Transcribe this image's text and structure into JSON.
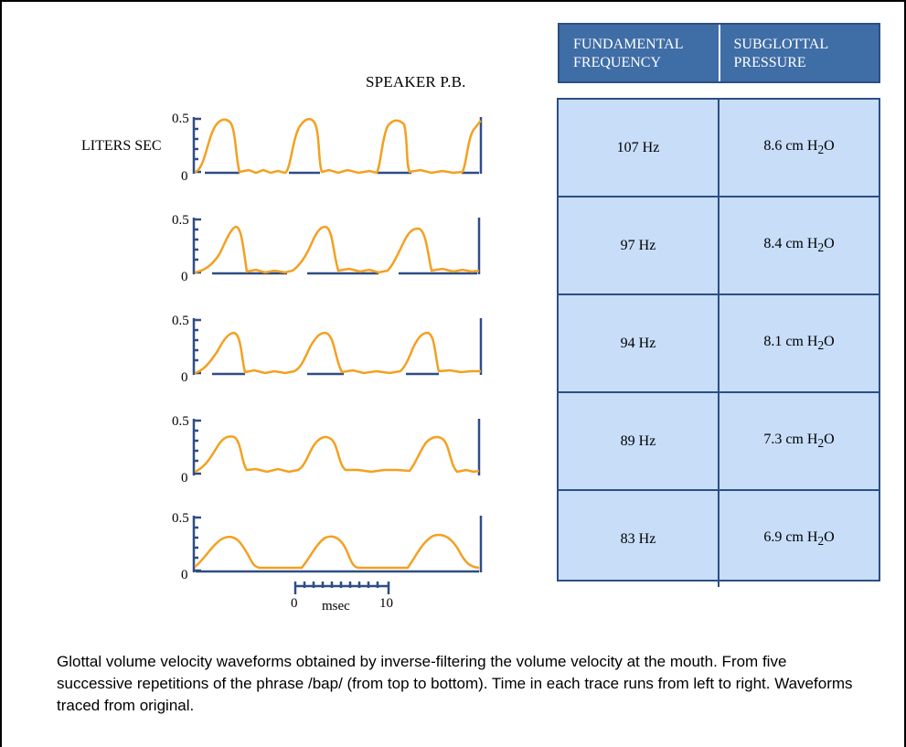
{
  "figure": {
    "speaker_label": "SPEAKER P.B.",
    "y_units_label": "LITERS SEC",
    "y_tick_top": "0.5",
    "y_tick_bottom": "0",
    "time_scale": {
      "start": "0",
      "end": "10",
      "unit": "msec"
    }
  },
  "table": {
    "headers": [
      "FUNDAMENTAL\nFREQUENCY",
      "SUBGLOTTAL\nPRESSURE"
    ],
    "rows": [
      {
        "frequency": "107 Hz",
        "pressure_value": "8.6 cm H",
        "pressure_sub": "2",
        "pressure_tail": "O"
      },
      {
        "frequency": "97 Hz",
        "pressure_value": "8.4 cm H",
        "pressure_sub": "2",
        "pressure_tail": "O"
      },
      {
        "frequency": "94 Hz",
        "pressure_value": "8.1 cm H",
        "pressure_sub": "2",
        "pressure_tail": "O"
      },
      {
        "frequency": "89 Hz",
        "pressure_value": "7.3 cm H",
        "pressure_sub": "2",
        "pressure_tail": "O"
      },
      {
        "frequency": "83 Hz",
        "pressure_value": "6.9 cm H",
        "pressure_sub": "2",
        "pressure_tail": "O"
      }
    ]
  },
  "caption": "Glottal volume velocity waveforms obtained by inverse-filtering the volume velocity at the mouth. From five successive repetitions of the phrase /bap/ (from top to bottom). Time in each trace runs from left to right. Waveforms traced from original.",
  "colors": {
    "waveform": "#f4a020",
    "axis": "#2f4d85",
    "header_bg": "#3f6da6",
    "cell_bg": "#c7ddf8"
  }
}
